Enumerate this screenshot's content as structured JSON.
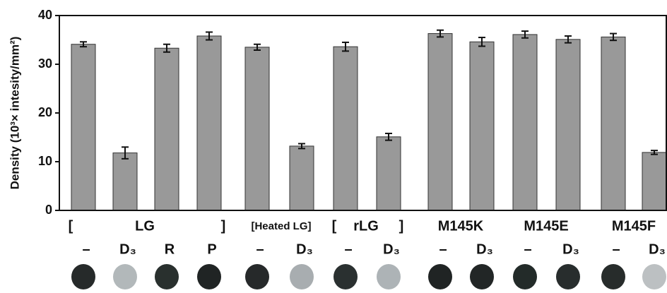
{
  "chart_data": {
    "type": "bar",
    "y_label": "Density (10³× intesity/mm²)",
    "categories": [
      "–",
      "D₃",
      "R",
      "P",
      "–",
      "D₃",
      "–",
      "D₃",
      "–",
      "D₃",
      "–",
      "D₃",
      "–",
      "D₃"
    ],
    "groups": [
      "[",
      "LG",
      "]",
      "[Heated LG]",
      "[",
      "rLG",
      "]",
      "M145K",
      "M145E",
      "M145F"
    ],
    "values": [
      34.1,
      11.8,
      33.3,
      35.8,
      33.5,
      13.2,
      33.6,
      15.1,
      36.3,
      34.6,
      36.1,
      35.1,
      35.6,
      11.9
    ],
    "errors": [
      0.5,
      1.2,
      0.8,
      0.8,
      0.6,
      0.5,
      0.9,
      0.7,
      0.7,
      0.9,
      0.7,
      0.7,
      0.7,
      0.4
    ],
    "color": "#999999",
    "ylim": [
      0,
      40
    ],
    "yticks": [
      0,
      10,
      20,
      30,
      40
    ]
  }
}
